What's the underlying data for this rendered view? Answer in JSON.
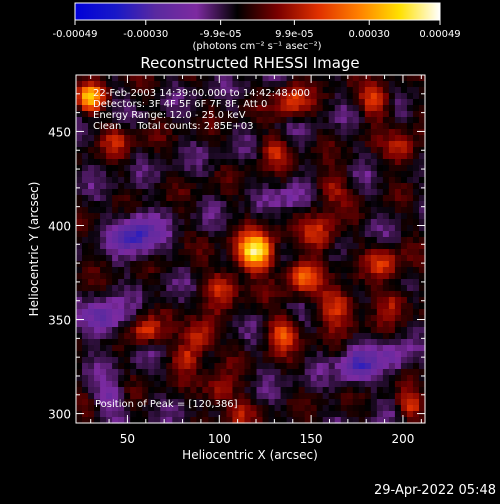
{
  "colorbar": {
    "tick_labels": [
      "-0.00049",
      "-0.00030",
      "-9.9e-05",
      "9.9e-05",
      "0.00030",
      "0.00049"
    ],
    "tick_values": [
      -0.00049,
      -0.0003,
      -9.9e-05,
      9.9e-05,
      0.0003,
      0.00049
    ],
    "range": [
      -0.00049,
      0.00049
    ],
    "units_label": "(photons cm⁻² s⁻¹ asec⁻²)",
    "colors": [
      "#0000d8",
      "#1818c8",
      "#5a2aa0",
      "#7d2aa0",
      "#000000",
      "#7a0000",
      "#e03000",
      "#ff8000",
      "#ffe000",
      "#ffffff"
    ]
  },
  "chart_data": {
    "type": "heatmap",
    "title": "Reconstructed RHESSI Image",
    "xlabel": "Heliocentric X (arcsec)",
    "ylabel": "Heliocentric Y (arcsec)",
    "xlim": [
      22,
      212
    ],
    "ylim": [
      295,
      480
    ],
    "xticks": [
      50,
      100,
      150,
      200
    ],
    "yticks": [
      300,
      350,
      400,
      450
    ],
    "annotations": [
      "22-Feb-2003 14:39:00.000 to 14:42:48.000",
      "Detectors: 3F 4F 5F 6F 7F 8F, Att 0",
      "Energy Range: 12.0 - 25.0 keV",
      "Clean     Total counts: 2.85E+03"
    ],
    "peak_label": "Position of Peak = [120,386]",
    "peak_position": [
      120,
      386
    ],
    "sources": [
      {
        "x": 120,
        "y": 386,
        "sigma": 7,
        "amp": 1.0
      },
      {
        "x": 145,
        "y": 373,
        "sigma": 6,
        "amp": 0.55
      },
      {
        "x": 165,
        "y": 357,
        "sigma": 7,
        "amp": 0.5
      },
      {
        "x": 155,
        "y": 395,
        "sigma": 7,
        "amp": 0.45
      },
      {
        "x": 102,
        "y": 368,
        "sigma": 6,
        "amp": 0.45
      },
      {
        "x": 89,
        "y": 341,
        "sigma": 6,
        "amp": 0.5
      },
      {
        "x": 135,
        "y": 343,
        "sigma": 6,
        "amp": 0.5
      },
      {
        "x": 190,
        "y": 380,
        "sigma": 6,
        "amp": 0.4
      },
      {
        "x": 195,
        "y": 360,
        "sigma": 6,
        "amp": 0.35
      },
      {
        "x": 60,
        "y": 344,
        "sigma": 5,
        "amp": 0.45
      },
      {
        "x": 30,
        "y": 468,
        "sigma": 5,
        "amp": 0.75
      },
      {
        "x": 140,
        "y": 466,
        "sigma": 6,
        "amp": 0.45
      },
      {
        "x": 185,
        "y": 466,
        "sigma": 6,
        "amp": 0.45
      },
      {
        "x": 200,
        "y": 440,
        "sigma": 6,
        "amp": 0.4
      },
      {
        "x": 130,
        "y": 440,
        "sigma": 5,
        "amp": 0.4
      },
      {
        "x": 100,
        "y": 312,
        "sigma": 6,
        "amp": 0.4
      },
      {
        "x": 205,
        "y": 305,
        "sigma": 5,
        "amp": 0.45
      },
      {
        "x": 82,
        "y": 330,
        "sigma": 5,
        "amp": 0.35
      },
      {
        "x": 160,
        "y": 420,
        "sigma": 6,
        "amp": 0.35
      },
      {
        "x": 45,
        "y": 445,
        "sigma": 6,
        "amp": 0.3
      },
      {
        "x": 110,
        "y": 300,
        "sigma": 5,
        "amp": 0.3
      },
      {
        "x": 55,
        "y": 395,
        "sigma": 8,
        "amp": -0.55
      },
      {
        "x": 38,
        "y": 350,
        "sigma": 7,
        "amp": -0.45
      },
      {
        "x": 175,
        "y": 325,
        "sigma": 7,
        "amp": -0.45
      },
      {
        "x": 40,
        "y": 310,
        "sigma": 6,
        "amp": -0.3
      },
      {
        "x": 140,
        "y": 415,
        "sigma": 6,
        "amp": -0.25
      },
      {
        "x": 195,
        "y": 330,
        "sigma": 6,
        "amp": -0.3
      }
    ]
  },
  "footer": {
    "timestamp": "29-Apr-2022 05:48"
  }
}
